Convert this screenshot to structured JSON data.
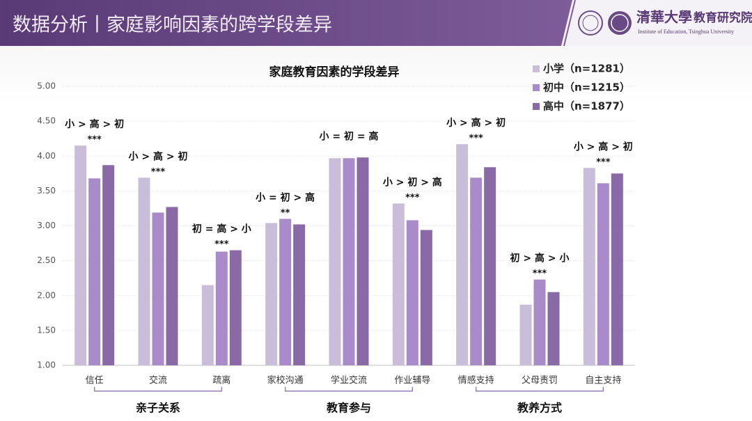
{
  "header": {
    "title": "数据分析丨家庭影响因素的跨学段差异",
    "logo_name": "清華大學",
    "logo_dept": "教育研究院",
    "logo_english": "Institute of Education, Tsinghua University"
  },
  "chart_data": {
    "type": "bar",
    "title": "家庭教育因素的学段差异",
    "categories": [
      "信任",
      "交流",
      "疏离",
      "家校沟通",
      "学业交流",
      "作业辅导",
      "情感支持",
      "父母责罚",
      "自主支持"
    ],
    "series": [
      {
        "name": "小学（n=1281）",
        "color": "#c9bdd9",
        "values": [
          4.15,
          3.69,
          2.15,
          3.04,
          3.97,
          3.32,
          4.17,
          1.87,
          3.83
        ]
      },
      {
        "name": "初中（n=1215）",
        "color": "#a98bc9",
        "values": [
          3.68,
          3.19,
          2.63,
          3.1,
          3.97,
          3.08,
          3.69,
          2.23,
          3.61
        ]
      },
      {
        "name": "高中（n=1877）",
        "color": "#8a6aa6",
        "values": [
          3.87,
          3.27,
          2.65,
          3.02,
          3.98,
          2.94,
          3.84,
          2.05,
          3.75
        ]
      }
    ],
    "annotations": [
      {
        "comparison": "小 > 高 > 初",
        "significance": "***"
      },
      {
        "comparison": "小 > 高 > 初",
        "significance": "***"
      },
      {
        "comparison": "初 = 高 > 小",
        "significance": "***"
      },
      {
        "comparison": "小 = 初 > 高",
        "significance": "**"
      },
      {
        "comparison": "小 = 初 = 高",
        "significance": ""
      },
      {
        "comparison": "小 > 初 > 高",
        "significance": "***"
      },
      {
        "comparison": "小 > 高 > 初",
        "significance": "***"
      },
      {
        "comparison": "初 > 高 > 小",
        "significance": "***"
      },
      {
        "comparison": "小 > 高 > 初",
        "significance": "***"
      }
    ],
    "groups": [
      {
        "label": "亲子关系",
        "categories": [
          "信任",
          "交流",
          "疏离"
        ]
      },
      {
        "label": "教育参与",
        "categories": [
          "家校沟通",
          "学业交流",
          "作业辅导"
        ]
      },
      {
        "label": "教养方式",
        "categories": [
          "情感支持",
          "父母责罚",
          "自主支持"
        ]
      }
    ],
    "ylim": [
      1,
      5
    ],
    "yticks": [
      {
        "value": 1,
        "label": "1.00"
      },
      {
        "value": 1.5,
        "label": "1.50"
      },
      {
        "value": 2,
        "label": "2.00"
      },
      {
        "value": 2.5,
        "label": "2.50"
      },
      {
        "value": 3,
        "label": "3.00"
      },
      {
        "value": 3.5,
        "label": "3.50"
      },
      {
        "value": 4,
        "label": "4.00"
      },
      {
        "value": 4.5,
        "label": "4.50"
      },
      {
        "value": 5,
        "label": "5.00"
      }
    ],
    "grid": true,
    "legend": "top-right"
  }
}
